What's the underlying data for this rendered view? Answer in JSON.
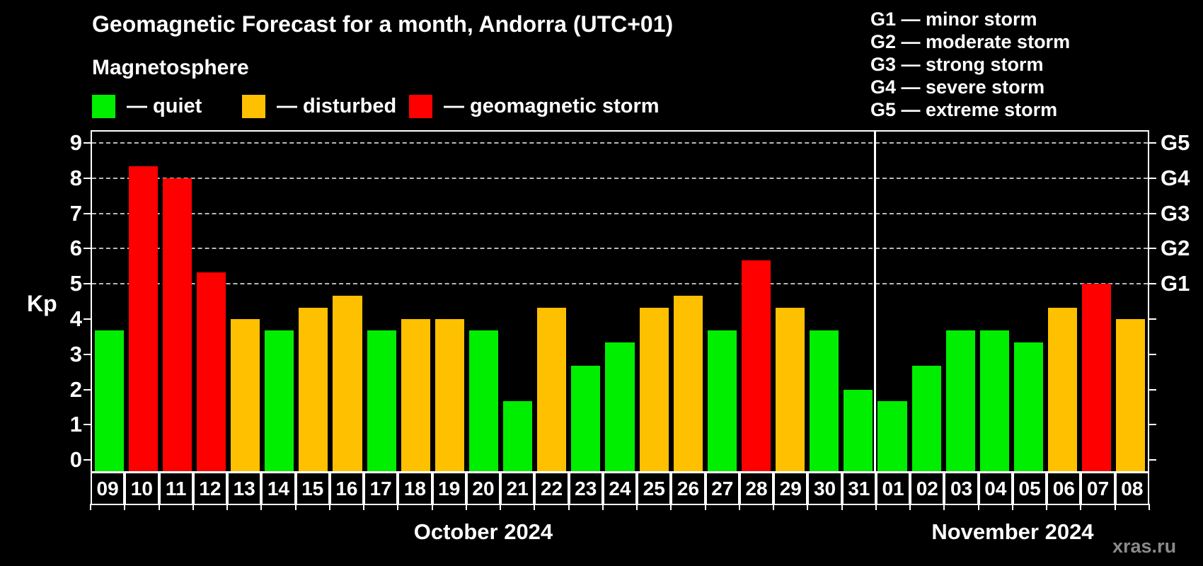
{
  "chart_data": {
    "type": "bar",
    "title": "Geomagnetic Forecast for a month, Andorra (UTC+01)",
    "subtitle": "Magnetosphere",
    "ylabel": "Kp",
    "ylim": [
      0,
      9
    ],
    "yticks": [
      0,
      1,
      2,
      3,
      4,
      5,
      6,
      7,
      8,
      9
    ],
    "grid_kp": [
      5,
      6,
      7,
      8,
      9
    ],
    "right_axis_labels": [
      {
        "label": "G5",
        "kp": 9
      },
      {
        "label": "G4",
        "kp": 8
      },
      {
        "label": "G3",
        "kp": 7
      },
      {
        "label": "G2",
        "kp": 6
      },
      {
        "label": "G1",
        "kp": 5
      }
    ],
    "colors": {
      "quiet": "#00ee00",
      "disturbed": "#ffc000",
      "storm": "#ff0000",
      "axis": "#ffffff",
      "grid": "#b8b8b8",
      "background": "#000000"
    },
    "legend": [
      {
        "status": "quiet",
        "label": "— quiet"
      },
      {
        "status": "disturbed",
        "label": "— disturbed"
      },
      {
        "status": "storm",
        "label": "— geomagnetic storm"
      }
    ],
    "storm_scale": [
      "G1 — minor storm",
      "G2 — moderate storm",
      "G3 — strong storm",
      "G4 — severe storm",
      "G5 — extreme storm"
    ],
    "months": [
      {
        "label": "October 2024",
        "days": [
          {
            "day": "09",
            "kp": 3.67,
            "status": "quiet"
          },
          {
            "day": "10",
            "kp": 8.33,
            "status": "storm"
          },
          {
            "day": "11",
            "kp": 8.0,
            "status": "storm"
          },
          {
            "day": "12",
            "kp": 5.33,
            "status": "storm"
          },
          {
            "day": "13",
            "kp": 4.0,
            "status": "disturbed"
          },
          {
            "day": "14",
            "kp": 3.67,
            "status": "quiet"
          },
          {
            "day": "15",
            "kp": 4.33,
            "status": "disturbed"
          },
          {
            "day": "16",
            "kp": 4.67,
            "status": "disturbed"
          },
          {
            "day": "17",
            "kp": 3.67,
            "status": "quiet"
          },
          {
            "day": "18",
            "kp": 4.0,
            "status": "disturbed"
          },
          {
            "day": "19",
            "kp": 4.0,
            "status": "disturbed"
          },
          {
            "day": "20",
            "kp": 3.67,
            "status": "quiet"
          },
          {
            "day": "21",
            "kp": 1.67,
            "status": "quiet"
          },
          {
            "day": "22",
            "kp": 4.33,
            "status": "disturbed"
          },
          {
            "day": "23",
            "kp": 2.67,
            "status": "quiet"
          },
          {
            "day": "24",
            "kp": 3.33,
            "status": "quiet"
          },
          {
            "day": "25",
            "kp": 4.33,
            "status": "disturbed"
          },
          {
            "day": "26",
            "kp": 4.67,
            "status": "disturbed"
          },
          {
            "day": "27",
            "kp": 3.67,
            "status": "quiet"
          },
          {
            "day": "28",
            "kp": 5.67,
            "status": "storm"
          },
          {
            "day": "29",
            "kp": 4.33,
            "status": "disturbed"
          },
          {
            "day": "30",
            "kp": 3.67,
            "status": "quiet"
          },
          {
            "day": "31",
            "kp": 2.0,
            "status": "quiet"
          }
        ]
      },
      {
        "label": "November 2024",
        "days": [
          {
            "day": "01",
            "kp": 1.67,
            "status": "quiet"
          },
          {
            "day": "02",
            "kp": 2.67,
            "status": "quiet"
          },
          {
            "day": "03",
            "kp": 3.67,
            "status": "quiet"
          },
          {
            "day": "04",
            "kp": 3.67,
            "status": "quiet"
          },
          {
            "day": "05",
            "kp": 3.33,
            "status": "quiet"
          },
          {
            "day": "06",
            "kp": 4.33,
            "status": "disturbed"
          },
          {
            "day": "07",
            "kp": 5.0,
            "status": "storm"
          },
          {
            "day": "08",
            "kp": 4.0,
            "status": "disturbed"
          }
        ]
      }
    ],
    "watermark": "xras.ru"
  }
}
